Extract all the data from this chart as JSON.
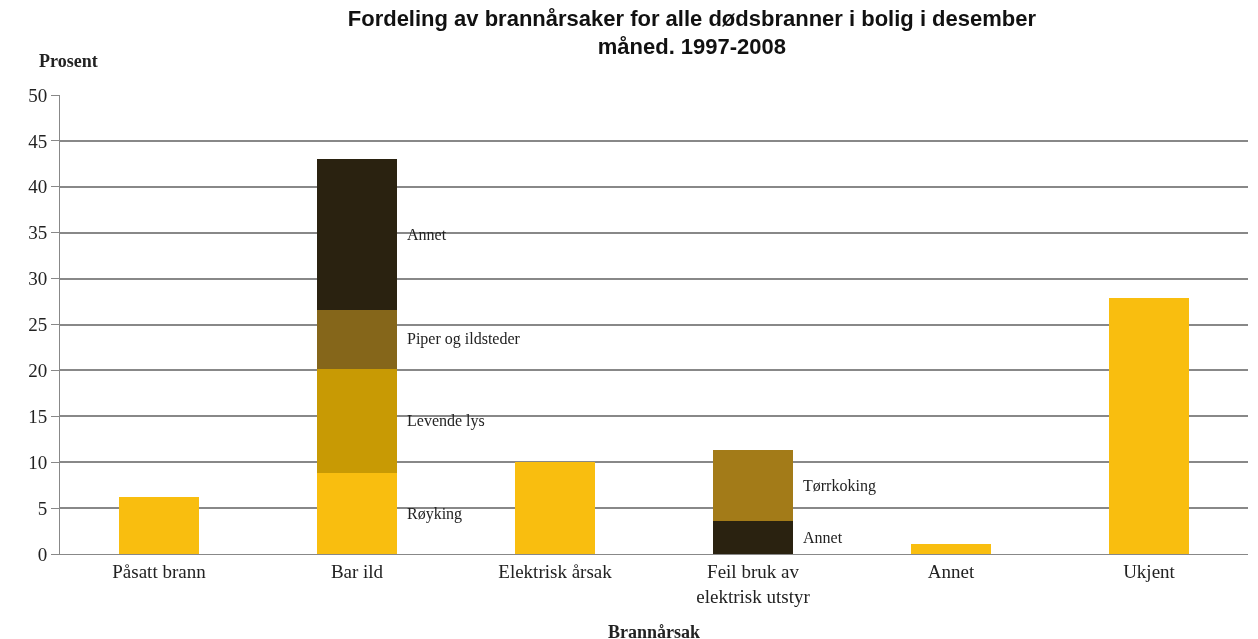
{
  "chart_data": {
    "type": "bar",
    "stacked": true,
    "title": "Fordeling av brannårsaker for alle dødsbranner i bolig i desember måned. 1997-2008",
    "xlabel": "Brannårsak",
    "ylabel": "Prosent",
    "categories": [
      "Påsatt brann",
      "Bar ild",
      "Elektrisk årsak",
      "Feil bruk av elektrisk utstyr",
      "Annet",
      "Ukjent"
    ],
    "series": [
      {
        "color": "#f9be0f",
        "values": [
          6.2,
          null,
          10.0,
          null,
          1.1,
          27.9
        ]
      },
      {
        "name": "Røyking",
        "color": "#f9be0f",
        "values": [
          null,
          8.8,
          null,
          null,
          null,
          null
        ]
      },
      {
        "name": "Annet",
        "color": "#2a2210",
        "values": [
          null,
          null,
          null,
          3.6,
          null,
          null
        ]
      },
      {
        "name": "Levende lys",
        "color": "#c89a04",
        "values": [
          null,
          11.4,
          null,
          null,
          null,
          null
        ]
      },
      {
        "name": "Tørrkoking",
        "color": "#a37b18",
        "values": [
          null,
          null,
          null,
          7.7,
          null,
          null
        ]
      },
      {
        "name": "Piper og ildsteder",
        "color": "#85661a",
        "values": [
          null,
          6.4,
          null,
          null,
          null,
          null
        ]
      },
      {
        "name": "Annet",
        "color": "#2a2210",
        "values": [
          null,
          16.4,
          null,
          null,
          null,
          null
        ]
      }
    ],
    "ylim": [
      0,
      50
    ],
    "yticks": [
      0,
      5,
      10,
      15,
      20,
      25,
      30,
      35,
      40,
      45,
      50
    ],
    "grid": "y"
  }
}
